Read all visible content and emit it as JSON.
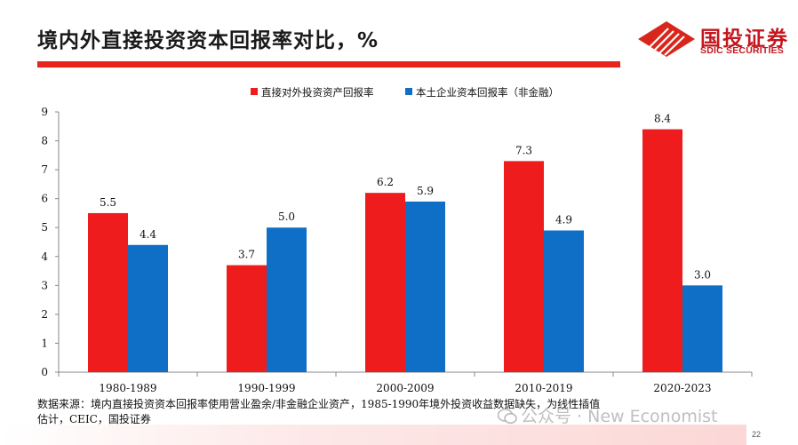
{
  "title": "境内外直接投资资本回报率对比，%",
  "logo": {
    "cn": "国投证券",
    "en": "SDIC SECURITIES"
  },
  "colors": {
    "red": "#ee1c1c",
    "blue": "#0f6fc6",
    "accent": "#e8241c"
  },
  "chart_data": {
    "type": "bar",
    "categories": [
      "1980-1989",
      "1990-1999",
      "2000-2009",
      "2010-2019",
      "2020-2023"
    ],
    "series": [
      {
        "name": "直接对外投资资产回报率",
        "values": [
          5.5,
          3.7,
          6.2,
          7.3,
          8.4
        ],
        "color": "#ee1c1c"
      },
      {
        "name": "本土企业资本回报率（非金融）",
        "values": [
          4.4,
          5.0,
          5.9,
          4.9,
          3.0
        ],
        "color": "#0f6fc6"
      }
    ],
    "value_labels": [
      [
        "5.5",
        "3.7",
        "6.2",
        "7.3",
        "8.4"
      ],
      [
        "4.4",
        "5.0",
        "5.9",
        "4.9",
        "3.0"
      ]
    ],
    "yticks": [
      "0",
      "1",
      "2",
      "3",
      "4",
      "5",
      "6",
      "7",
      "8",
      "9"
    ],
    "ylim": [
      0,
      9
    ],
    "grid": false,
    "legend_position": "top-center"
  },
  "source": {
    "line1": "数据来源：境内直接投资资本回报率使用营业盈余/非金融企业资产，1985-1990年境外投资收益数据缺失，为线性插值",
    "line2": "估计，CEIC，国投证券"
  },
  "watermark": "公众号 · New Economist",
  "page_number": "22"
}
